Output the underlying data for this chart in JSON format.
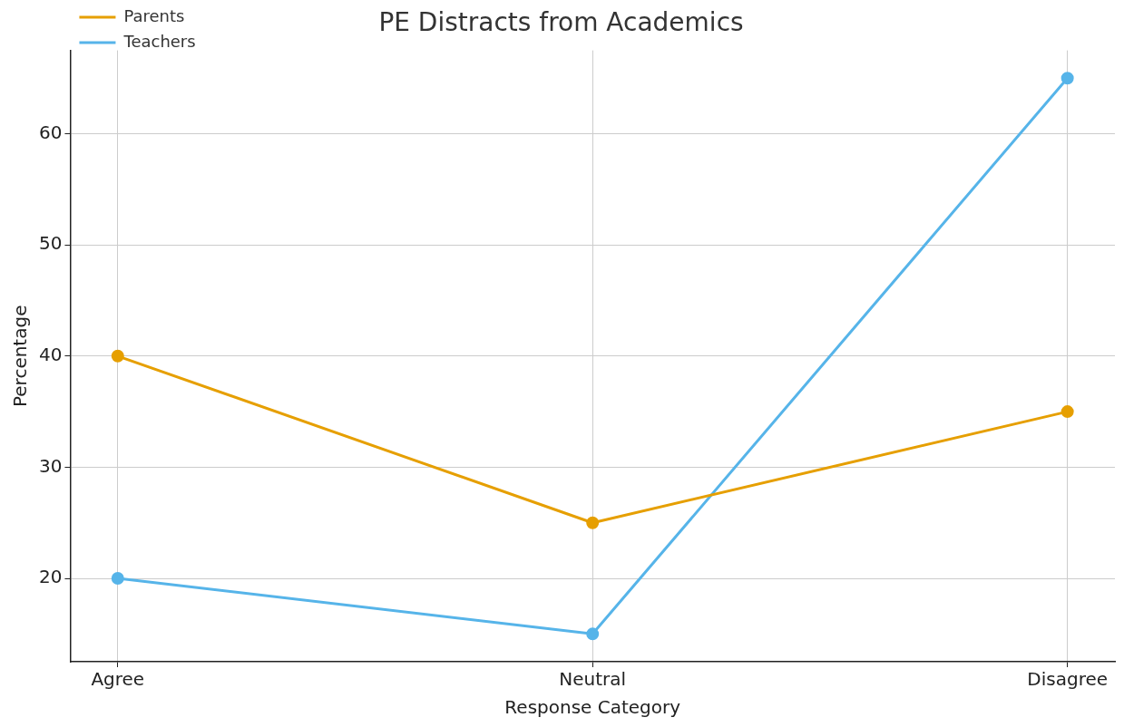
{
  "chart_data": {
    "type": "line",
    "title": "PE Distracts from Academics",
    "xlabel": "Response Category",
    "ylabel": "Percentage",
    "categories": [
      "Agree",
      "Neutral",
      "Disagree"
    ],
    "series": [
      {
        "name": "Parents",
        "color": "#e69f00",
        "values": [
          40,
          25,
          35
        ]
      },
      {
        "name": "Teachers",
        "color": "#56b4e9",
        "values": [
          20,
          15,
          65
        ]
      }
    ],
    "ylim": [
      12.5,
      67.5
    ],
    "yticks": [
      20,
      30,
      40,
      50,
      60
    ],
    "grid": true,
    "legend": "top left",
    "marker": "circle",
    "line_style": "solid"
  }
}
